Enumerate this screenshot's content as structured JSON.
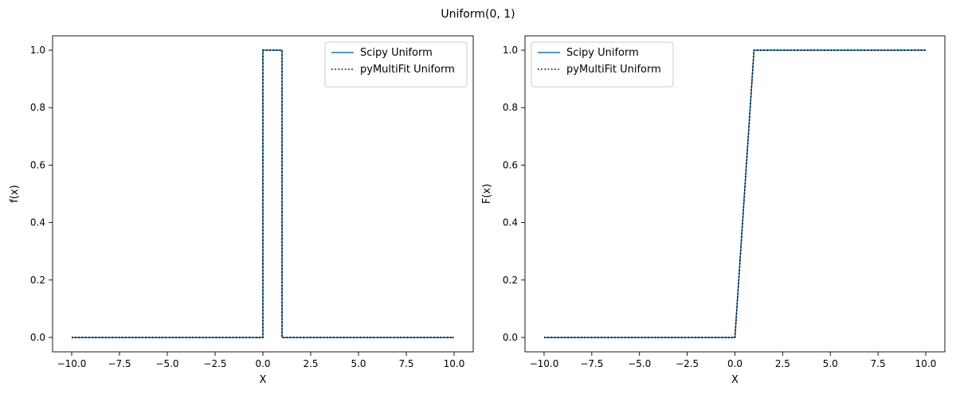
{
  "figure": {
    "title": "Uniform(0, 1)"
  },
  "colors": {
    "scipy": "#1f77b4",
    "pymultifit": "#000000"
  },
  "chart_data": [
    {
      "type": "line",
      "xlabel": "X",
      "ylabel": "f(x)",
      "xlim": [
        -11,
        11
      ],
      "ylim": [
        -0.05,
        1.05
      ],
      "xticks": [
        -10,
        -7.5,
        -5,
        -2.5,
        0,
        2.5,
        5,
        7.5,
        10
      ],
      "xtick_labels": [
        "−10.0",
        "−7.5",
        "−5.0",
        "−2.5",
        "0.0",
        "2.5",
        "5.0",
        "7.5",
        "10.0"
      ],
      "yticks": [
        0,
        0.2,
        0.4,
        0.6,
        0.8,
        1.0
      ],
      "ytick_labels": [
        "0.0",
        "0.2",
        "0.4",
        "0.6",
        "0.8",
        "1.0"
      ],
      "legend_position": "upper right",
      "series": [
        {
          "name": "Scipy Uniform",
          "style": "solid",
          "x": [
            -10,
            0,
            0,
            1,
            1,
            10
          ],
          "y": [
            0,
            0,
            1,
            1,
            0,
            0
          ]
        },
        {
          "name": "pyMultiFit Uniform",
          "style": "dotted",
          "x": [
            -10,
            0,
            0,
            1,
            1,
            10
          ],
          "y": [
            0,
            0,
            1,
            1,
            0,
            0
          ]
        }
      ]
    },
    {
      "type": "line",
      "xlabel": "X",
      "ylabel": "F(x)",
      "xlim": [
        -11,
        11
      ],
      "ylim": [
        -0.05,
        1.05
      ],
      "xticks": [
        -10,
        -7.5,
        -5,
        -2.5,
        0,
        2.5,
        5,
        7.5,
        10
      ],
      "xtick_labels": [
        "−10.0",
        "−7.5",
        "−5.0",
        "−2.5",
        "0.0",
        "2.5",
        "5.0",
        "7.5",
        "10.0"
      ],
      "yticks": [
        0,
        0.2,
        0.4,
        0.6,
        0.8,
        1.0
      ],
      "ytick_labels": [
        "0.0",
        "0.2",
        "0.4",
        "0.6",
        "0.8",
        "1.0"
      ],
      "legend_position": "upper left",
      "series": [
        {
          "name": "Scipy Uniform",
          "style": "solid",
          "x": [
            -10,
            0,
            1,
            10
          ],
          "y": [
            0,
            0,
            1,
            1
          ]
        },
        {
          "name": "pyMultiFit Uniform",
          "style": "dotted",
          "x": [
            -10,
            0,
            1,
            10
          ],
          "y": [
            0,
            0,
            1,
            1
          ]
        }
      ]
    }
  ]
}
